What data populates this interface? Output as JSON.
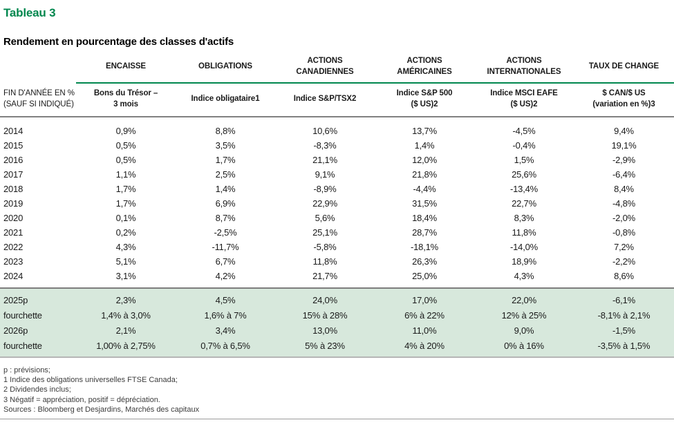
{
  "colors": {
    "accent_green": "#00874e",
    "highlight_green": "#d7e8dc",
    "rule_gray": "#808080"
  },
  "header": {
    "table_number": "Tableau 3",
    "table_title": "Rendement en pourcentage des classes d'actifs"
  },
  "table": {
    "row_header": "FIN D'ANNÉE EN %\n(SAUF SI INDIQUÉ)",
    "columns": [
      {
        "group": "ENCAISSE",
        "sub": "Bons du Trésor –\n3 mois"
      },
      {
        "group": "OBLIGATIONS",
        "sub": "Indice obligataire1"
      },
      {
        "group": "ACTIONS\nCANADIENNES",
        "sub": "Indice S&P/TSX2"
      },
      {
        "group": "ACTIONS\nAMÉRICAINES",
        "sub": "Indice S&P 500\n($ US)2"
      },
      {
        "group": "ACTIONS\nINTERNATIONALES",
        "sub": "Indice MSCI EAFE\n($ US)2"
      },
      {
        "group": "TAUX DE CHANGE",
        "sub": "$ CAN/$ US\n(variation en %)3"
      }
    ],
    "history_rows": [
      {
        "label": "2014",
        "values": [
          "0,9%",
          "8,8%",
          "10,6%",
          "13,7%",
          "-4,5%",
          "9,4%"
        ]
      },
      {
        "label": "2015",
        "values": [
          "0,5%",
          "3,5%",
          "-8,3%",
          "1,4%",
          "-0,4%",
          "19,1%"
        ]
      },
      {
        "label": "2016",
        "values": [
          "0,5%",
          "1,7%",
          "21,1%",
          "12,0%",
          "1,5%",
          "-2,9%"
        ]
      },
      {
        "label": "2017",
        "values": [
          "1,1%",
          "2,5%",
          "9,1%",
          "21,8%",
          "25,6%",
          "-6,4%"
        ]
      },
      {
        "label": "2018",
        "values": [
          "1,7%",
          "1,4%",
          "-8,9%",
          "-4,4%",
          "-13,4%",
          "8,4%"
        ]
      },
      {
        "label": "2019",
        "values": [
          "1,7%",
          "6,9%",
          "22,9%",
          "31,5%",
          "22,7%",
          "-4,8%"
        ]
      },
      {
        "label": "2020",
        "values": [
          "0,1%",
          "8,7%",
          "5,6%",
          "18,4%",
          "8,3%",
          "-2,0%"
        ]
      },
      {
        "label": "2021",
        "values": [
          "0,2%",
          "-2,5%",
          "25,1%",
          "28,7%",
          "11,8%",
          "-0,8%"
        ]
      },
      {
        "label": "2022",
        "values": [
          "4,3%",
          "-11,7%",
          "-5,8%",
          "-18,1%",
          "-14,0%",
          "7,2%"
        ]
      },
      {
        "label": "2023",
        "values": [
          "5,1%",
          "6,7%",
          "11,8%",
          "26,3%",
          "18,9%",
          "-2,2%"
        ]
      },
      {
        "label": "2024",
        "values": [
          "3,1%",
          "4,2%",
          "21,7%",
          "25,0%",
          "4,3%",
          "8,6%"
        ]
      }
    ],
    "forecast_rows": [
      {
        "label": "2025p",
        "values": [
          "2,3%",
          "4,5%",
          "24,0%",
          "17,0%",
          "22,0%",
          "-6,1%"
        ]
      },
      {
        "label": "fourchette",
        "values": [
          "1,4% à 3,0%",
          "1,6% à 7%",
          "15% à 28%",
          "6% à 22%",
          "12% à 25%",
          "-8,1% à 2,1%"
        ]
      },
      {
        "label": "2026p",
        "values": [
          "2,1%",
          "3,4%",
          "13,0%",
          "11,0%",
          "9,0%",
          "-1,5%"
        ]
      },
      {
        "label": "fourchette",
        "values": [
          "1,00% à 2,75%",
          "0,7% à 6,5%",
          "5% à 23%",
          "4% à 20%",
          "0% à 16%",
          "-3,5% à 1,5%"
        ]
      }
    ]
  },
  "footnotes": [
    "p : prévisions;",
    "1 Indice des obligations universelles FTSE Canada;",
    "2 Dividendes inclus;",
    "3 Négatif = appréciation, positif = dépréciation.",
    "Sources : Bloomberg et Desjardins, Marchés des capitaux"
  ]
}
